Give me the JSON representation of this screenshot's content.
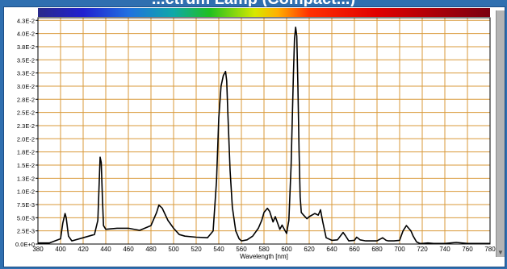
{
  "page": {
    "title": "...ctrum Lamp (Compact...)"
  },
  "chart_data": {
    "type": "line",
    "xlabel": "Wavelength [nm]",
    "ylabel": "",
    "xlim": [
      380,
      780
    ],
    "ylim": [
      0,
      0.043
    ],
    "grid": true,
    "legend": "none",
    "color_bar": "visible spectrum gradient across top of plot",
    "x_ticks": [
      380,
      400,
      420,
      440,
      460,
      480,
      500,
      520,
      540,
      560,
      580,
      600,
      620,
      640,
      660,
      680,
      700,
      720,
      740,
      760,
      780
    ],
    "x_tick_labels": [
      "380",
      "400",
      "420",
      "440",
      "460",
      "480",
      "500",
      "520",
      "540",
      "560",
      "580",
      "600",
      "620",
      "640",
      "660",
      "680",
      "700",
      "720",
      "740",
      "760",
      "780"
    ],
    "y_ticks": [
      0,
      0.0025,
      0.005,
      0.0075,
      0.01,
      0.0125,
      0.015,
      0.0175,
      0.02,
      0.0225,
      0.025,
      0.0275,
      0.03,
      0.0325,
      0.035,
      0.0375,
      0.04,
      0.0425
    ],
    "y_tick_labels": [
      "0.0E+0",
      "2.5E-3",
      "5.0E-3",
      "7.5E-3",
      "1.0E-2",
      "1.3E-2",
      "1.5E-2",
      "1.8E-2",
      "2.0E-2",
      "2.3E-2",
      "2.5E-2",
      "2.8E-2",
      "3.0E-2",
      "3.3E-2",
      "3.5E-2",
      "3.8E-2",
      "4.0E-2",
      "4.3E-2"
    ],
    "colors": {
      "grid": "#d99a3a",
      "line": "#000000",
      "plot_bg": "#ffffff"
    },
    "series": [
      {
        "x": [
          380,
          390,
          400,
          402,
          404,
          405,
          407,
          410,
          420,
          430,
          433,
          435,
          436,
          437,
          438,
          440,
          450,
          460,
          470,
          480,
          485,
          487,
          490,
          495,
          500,
          505,
          510,
          520,
          530,
          535,
          538,
          540,
          542,
          544,
          546,
          547,
          548,
          550,
          552,
          555,
          558,
          560,
          565,
          570,
          575,
          578,
          580,
          583,
          585,
          588,
          590,
          592,
          594,
          596,
          598,
          600,
          602,
          604,
          606,
          607,
          608,
          609,
          610,
          611,
          612,
          613,
          615,
          618,
          620,
          625,
          628,
          630,
          632,
          635,
          640,
          645,
          650,
          652,
          655,
          660,
          662,
          665,
          670,
          680,
          685,
          688,
          690,
          695,
          700,
          703,
          706,
          708,
          710,
          712,
          715,
          718,
          720,
          725,
          730,
          740,
          750,
          760,
          770,
          780
        ],
        "y": [
          0.0002,
          0.0002,
          0.001,
          0.004,
          0.0058,
          0.005,
          0.0015,
          0.0006,
          0.0012,
          0.0018,
          0.0045,
          0.0165,
          0.0155,
          0.009,
          0.0035,
          0.0028,
          0.003,
          0.003,
          0.0026,
          0.0035,
          0.006,
          0.0074,
          0.0068,
          0.0045,
          0.003,
          0.0018,
          0.0015,
          0.0013,
          0.0012,
          0.0025,
          0.012,
          0.024,
          0.03,
          0.032,
          0.0328,
          0.031,
          0.025,
          0.014,
          0.007,
          0.0025,
          0.001,
          0.0006,
          0.0008,
          0.0015,
          0.003,
          0.0045,
          0.006,
          0.0068,
          0.0062,
          0.0042,
          0.0052,
          0.004,
          0.0028,
          0.0036,
          0.0028,
          0.002,
          0.0045,
          0.015,
          0.032,
          0.039,
          0.0412,
          0.0395,
          0.03,
          0.018,
          0.009,
          0.006,
          0.0055,
          0.0048,
          0.0052,
          0.0058,
          0.0055,
          0.0065,
          0.0042,
          0.0012,
          0.0007,
          0.0008,
          0.0022,
          0.0016,
          0.0006,
          0.0007,
          0.0013,
          0.0008,
          0.0006,
          0.0006,
          0.0012,
          0.0007,
          0.0006,
          0.0006,
          0.0007,
          0.0025,
          0.0035,
          0.003,
          0.0025,
          0.0015,
          0.0004,
          0.0001,
          0.0001,
          0.0002,
          0.0001,
          0.0001,
          0.0003,
          0.0001,
          0.0001,
          0.0001
        ]
      }
    ]
  }
}
